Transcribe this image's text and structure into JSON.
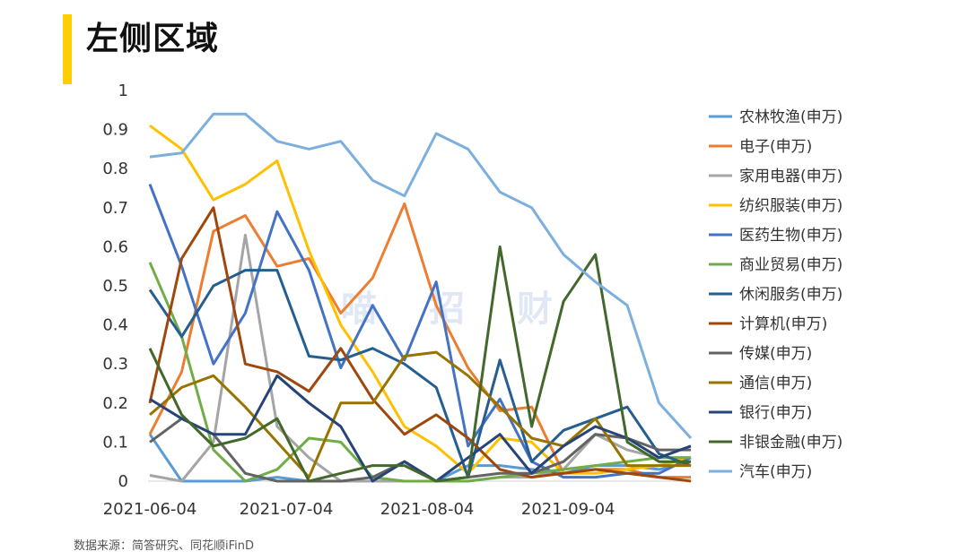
{
  "header": {
    "title": "左侧区域"
  },
  "footer": {
    "source": "数据来源：简答研究、同花顺iFinD"
  },
  "watermark": {
    "text": "喵招财"
  },
  "chart_data": {
    "type": "line",
    "title": "",
    "xlabel": "",
    "ylabel": "",
    "ylim": [
      0,
      1
    ],
    "yticks": [
      "0",
      "0.1",
      "0.2",
      "0.3",
      "0.4",
      "0.5",
      "0.6",
      "0.7",
      "0.8",
      "0.9",
      "1"
    ],
    "xtick_labels": [
      "2021-06-04",
      "2021-07-04",
      "2021-08-04",
      "2021-09-04"
    ],
    "x": [
      "2021-06-04",
      "2021-06-11",
      "2021-06-18",
      "2021-06-25",
      "2021-07-02",
      "2021-07-09",
      "2021-07-16",
      "2021-07-23",
      "2021-07-30",
      "2021-08-06",
      "2021-08-13",
      "2021-08-20",
      "2021-08-27",
      "2021-09-03",
      "2021-09-10",
      "2021-09-17",
      "2021-09-24",
      "2021-10-01"
    ],
    "grid": false,
    "legend_position": "right",
    "series": [
      {
        "name": "农林牧渔(申万)",
        "color": "#5B9BD5",
        "values": [
          0.12,
          0,
          0,
          0,
          0.01,
          0,
          0,
          0,
          0,
          0,
          0.04,
          0.04,
          0.03,
          0.02,
          0.04,
          0.04,
          0.03,
          0.05
        ]
      },
      {
        "name": "电子(申万)",
        "color": "#ED7D31",
        "values": [
          0.12,
          0.28,
          0.64,
          0.68,
          0.55,
          0.57,
          0.43,
          0.52,
          0.71,
          0.45,
          0.29,
          0.18,
          0.19,
          0.02,
          0.03,
          0.03,
          0.01,
          0.01
        ]
      },
      {
        "name": "家用电器(申万)",
        "color": "#A5A5A5",
        "values": [
          0.015,
          0,
          0.1,
          0.63,
          0.14,
          0.06,
          0,
          0,
          0,
          0,
          0,
          0.01,
          0.01,
          0.03,
          0.12,
          0.08,
          0.06,
          0.06
        ]
      },
      {
        "name": "纺织服装(申万)",
        "color": "#FFC000",
        "values": [
          0.91,
          0.85,
          0.72,
          0.76,
          0.82,
          0.59,
          0.4,
          0.28,
          0.14,
          0.09,
          0.02,
          0.11,
          0.1,
          0.02,
          0.02,
          0.03,
          0.04,
          0.06
        ]
      },
      {
        "name": "医药生物(申万)",
        "color": "#4472C4",
        "values": [
          0.76,
          0.55,
          0.3,
          0.43,
          0.69,
          0.54,
          0.29,
          0.45,
          0.31,
          0.51,
          0.09,
          0.21,
          0.05,
          0.01,
          0.01,
          0.02,
          0.02,
          0.06
        ]
      },
      {
        "name": "商业贸易(申万)",
        "color": "#70AD47",
        "values": [
          0.56,
          0.37,
          0.08,
          0,
          0.03,
          0.11,
          0.1,
          0.01,
          0,
          0,
          0,
          0.01,
          0.02,
          0.03,
          0.04,
          0.05,
          0.06,
          0.06
        ]
      },
      {
        "name": "休闲服务(申万)",
        "color": "#255E91",
        "values": [
          0.49,
          0.37,
          0.5,
          0.54,
          0.54,
          0.32,
          0.31,
          0.34,
          0.3,
          0.24,
          0.01,
          0.31,
          0.05,
          0.13,
          0.16,
          0.19,
          0.07,
          0.04
        ]
      },
      {
        "name": "计算机(申万)",
        "color": "#9E480E",
        "values": [
          0.2,
          0.57,
          0.7,
          0.3,
          0.28,
          0.23,
          0.34,
          0.21,
          0.12,
          0.17,
          0.11,
          0.03,
          0.01,
          0.02,
          0.03,
          0.02,
          0.01,
          0.0
        ]
      },
      {
        "name": "传媒(申万)",
        "color": "#636363",
        "values": [
          0.1,
          0.16,
          0.12,
          0.02,
          0,
          0,
          0,
          0.01,
          0.05,
          0,
          0.01,
          0.02,
          0.02,
          0.05,
          0.12,
          0.11,
          0.08,
          0.08
        ]
      },
      {
        "name": "通信(申万)",
        "color": "#997300",
        "values": [
          0.17,
          0.24,
          0.27,
          0.19,
          0.1,
          0.01,
          0.2,
          0.2,
          0.32,
          0.33,
          0.27,
          0.19,
          0.11,
          0.09,
          0.16,
          0.04,
          0.04,
          0.04
        ]
      },
      {
        "name": "银行(申万)",
        "color": "#264478",
        "values": [
          0.21,
          0.16,
          0.12,
          0.12,
          0.27,
          0.2,
          0.14,
          0,
          0.05,
          0,
          0.06,
          0.12,
          0.02,
          0.09,
          0.14,
          0.11,
          0.06,
          0.09
        ]
      },
      {
        "name": "非银金融(申万)",
        "color": "#43682B",
        "values": [
          0.34,
          0.17,
          0.09,
          0.11,
          0.16,
          0,
          0.02,
          0.04,
          0.04,
          0,
          0.01,
          0.6,
          0.14,
          0.46,
          0.58,
          0.1,
          0.05,
          0.05
        ]
      },
      {
        "name": "汽车(申万)",
        "color": "#7CAFDD",
        "values": [
          0.83,
          0.84,
          0.94,
          0.94,
          0.87,
          0.85,
          0.87,
          0.77,
          0.73,
          0.89,
          0.85,
          0.74,
          0.7,
          0.58,
          0.51,
          0.45,
          0.2,
          0.11
        ]
      }
    ]
  }
}
